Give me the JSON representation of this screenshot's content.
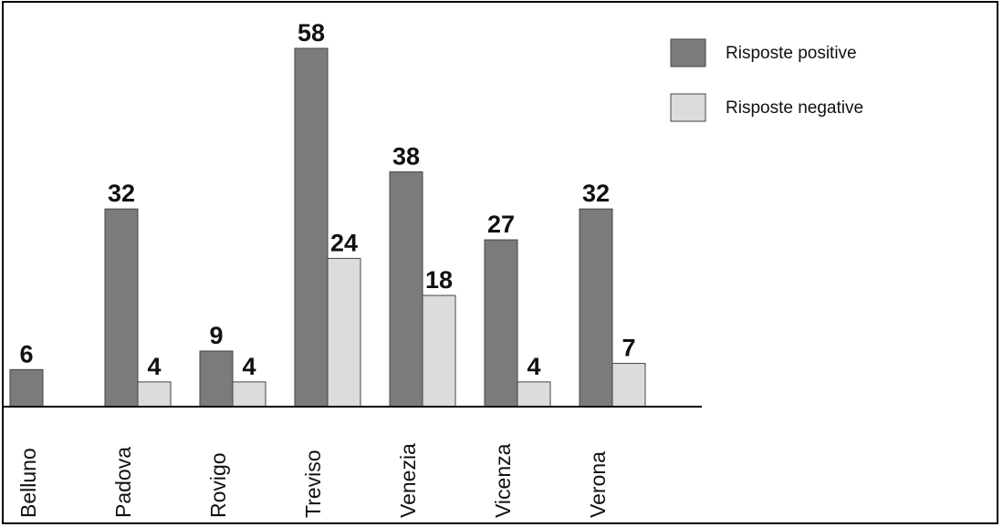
{
  "chart_data": {
    "type": "bar",
    "categories": [
      "Belluno",
      "Padova",
      "Rovigo",
      "Treviso",
      "Venezia",
      "Vicenza",
      "Verona"
    ],
    "series": [
      {
        "name": "Risposte positive",
        "color": "#7b7b7b",
        "values": [
          6,
          32,
          9,
          58,
          38,
          27,
          32
        ]
      },
      {
        "name": "Risposte negative",
        "color": "#dcdcdc",
        "values": [
          0,
          4,
          4,
          24,
          18,
          4,
          7
        ]
      }
    ],
    "value_labels": [
      [
        "6",
        "32",
        "9",
        "58",
        "38",
        "27",
        "32"
      ],
      [
        "",
        "4",
        "4",
        "24",
        "18",
        "4",
        "7"
      ]
    ],
    "ylim": [
      0,
      58
    ],
    "legend": "top-right",
    "grid": false
  }
}
